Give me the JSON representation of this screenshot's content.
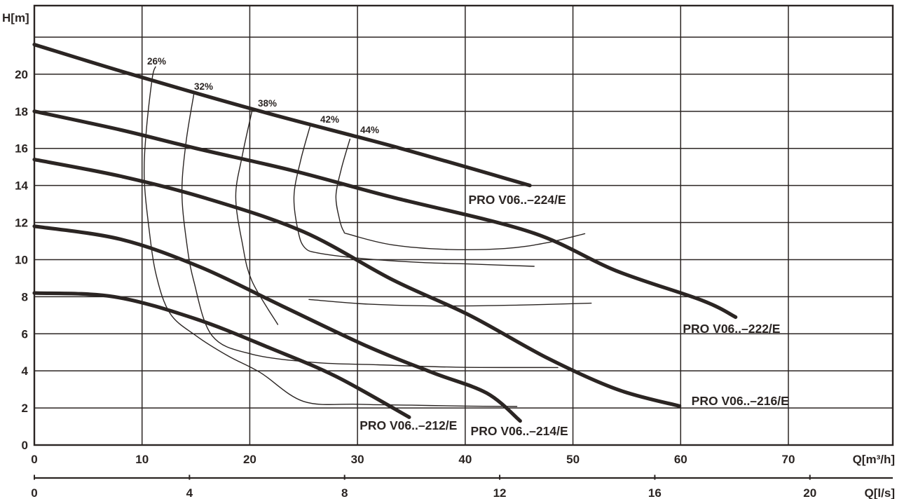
{
  "page": {
    "background": "#ffffff",
    "ink": "#2b2523"
  },
  "chart_data": {
    "type": "line",
    "ylabel": "H[m]",
    "xlabel": "Q[m³/h]",
    "xlabel_secondary": "Q[l/s]",
    "xlim": [
      0,
      79.7
    ],
    "ylim": [
      0,
      23.7
    ],
    "x_ticks": [
      0,
      10,
      20,
      30,
      40,
      50,
      60,
      70
    ],
    "x2_ticks": [
      0,
      4,
      8,
      12,
      16,
      20
    ],
    "y_ticks": [
      0,
      2,
      4,
      6,
      8,
      10,
      12,
      14,
      16,
      18,
      20
    ],
    "y_grid_values": [
      0,
      2,
      4,
      6,
      8,
      10,
      12,
      14,
      16,
      18,
      20,
      22
    ],
    "grid": true,
    "series": [
      {
        "name": "PRO V06..–224/E",
        "label_at": [
          40.3,
          13.0
        ],
        "points": [
          [
            0,
            21.6
          ],
          [
            9,
            20.0
          ],
          [
            21,
            18.0
          ],
          [
            34,
            16.0
          ],
          [
            46,
            14.0
          ]
        ]
      },
      {
        "name": "PRO V06..–222/E",
        "label_at": [
          60.2,
          6.05
        ],
        "points": [
          [
            0,
            18.0
          ],
          [
            8,
            17.0
          ],
          [
            15,
            16.0
          ],
          [
            24,
            14.8
          ],
          [
            33,
            13.4
          ],
          [
            46,
            11.5
          ],
          [
            54,
            9.4
          ],
          [
            62,
            7.8
          ],
          [
            65.1,
            6.9
          ]
        ]
      },
      {
        "name": "PRO V06..–216/E",
        "label_at": [
          61.0,
          2.15
        ],
        "points": [
          [
            0,
            15.4
          ],
          [
            8,
            14.5
          ],
          [
            16,
            13.3
          ],
          [
            25,
            11.5
          ],
          [
            33.3,
            8.9
          ],
          [
            40.4,
            7.0
          ],
          [
            47.6,
            4.7
          ],
          [
            54.1,
            3.0
          ],
          [
            59.9,
            2.1
          ]
        ]
      },
      {
        "name": "PRO V06..–214/E",
        "label_at": [
          40.5,
          0.53
        ],
        "points": [
          [
            0,
            11.8
          ],
          [
            8,
            11.1
          ],
          [
            15.4,
            9.6
          ],
          [
            23,
            7.5
          ],
          [
            31,
            5.3
          ],
          [
            37,
            3.9
          ],
          [
            42,
            2.8
          ],
          [
            45.1,
            1.3
          ]
        ]
      },
      {
        "name": "PRO V06..–212/E",
        "label_at": [
          30.2,
          0.83
        ],
        "points": [
          [
            0,
            8.2
          ],
          [
            7.4,
            8.0
          ],
          [
            15,
            6.8
          ],
          [
            22,
            5.2
          ],
          [
            28,
            3.7
          ],
          [
            34.8,
            1.5
          ]
        ]
      }
    ],
    "efficiency_contours": [
      {
        "label": "26%",
        "label_at": [
          10.47,
          20.52
        ],
        "points": [
          [
            11.25,
            20.4
          ],
          [
            10.95,
            19.8
          ],
          [
            10.4,
            17.0
          ],
          [
            10.2,
            14.5
          ],
          [
            10.6,
            11.9
          ],
          [
            11.3,
            9.2
          ],
          [
            12.6,
            7.1
          ],
          [
            15,
            5.9
          ],
          [
            18,
            4.8
          ],
          [
            21,
            3.9
          ],
          [
            25,
            2.35
          ],
          [
            30,
            2.2
          ],
          [
            35,
            2.15
          ],
          [
            40,
            2.1
          ],
          [
            44.8,
            2.08
          ]
        ]
      },
      {
        "label": "32%",
        "label_at": [
          14.83,
          19.16
        ],
        "points": [
          [
            14.8,
            18.9
          ],
          [
            14.1,
            16.4
          ],
          [
            13.7,
            13.7
          ],
          [
            14.1,
            11.1
          ],
          [
            14.8,
            8.85
          ],
          [
            16.5,
            5.9
          ],
          [
            20.2,
            4.9
          ],
          [
            26.1,
            4.45
          ],
          [
            31.9,
            4.33
          ],
          [
            39.1,
            4.2
          ],
          [
            48.6,
            4.18
          ]
        ]
      },
      {
        "label": "38%",
        "label_at": [
          20.75,
          18.26
        ],
        "points": [
          [
            20.2,
            18.0
          ],
          [
            19.3,
            15.6
          ],
          [
            18.7,
            13.4
          ],
          [
            19.3,
            10.9
          ],
          [
            20.2,
            8.85
          ],
          [
            22.6,
            6.5
          ]
        ]
      },
      {
        "label": "",
        "label_at": null,
        "points": [
          [
            25.5,
            7.85
          ],
          [
            31,
            7.6
          ],
          [
            38,
            7.5
          ],
          [
            45,
            7.55
          ],
          [
            51.7,
            7.65
          ]
        ]
      },
      {
        "label": "42%",
        "label_at": [
          26.54,
          17.39
        ],
        "points": [
          [
            25.6,
            17.2
          ],
          [
            24.7,
            15.3
          ],
          [
            24.1,
            13.4
          ],
          [
            24.5,
            11.5
          ],
          [
            25.1,
            10.65
          ],
          [
            26.4,
            10.35
          ],
          [
            30.6,
            10.05
          ],
          [
            35.8,
            9.85
          ],
          [
            41.1,
            9.75
          ],
          [
            46.4,
            9.64
          ]
        ]
      },
      {
        "label": "44%",
        "label_at": [
          30.25,
          16.82
        ],
        "points": [
          [
            29.3,
            16.5
          ],
          [
            28.5,
            14.9
          ],
          [
            28.0,
            13.45
          ],
          [
            28.3,
            12.25
          ],
          [
            28.7,
            11.55
          ],
          [
            29.3,
            11.35
          ],
          [
            33.2,
            10.8
          ],
          [
            38.4,
            10.55
          ],
          [
            43.7,
            10.6
          ],
          [
            47.5,
            10.9
          ],
          [
            51.1,
            11.4
          ]
        ]
      }
    ]
  }
}
